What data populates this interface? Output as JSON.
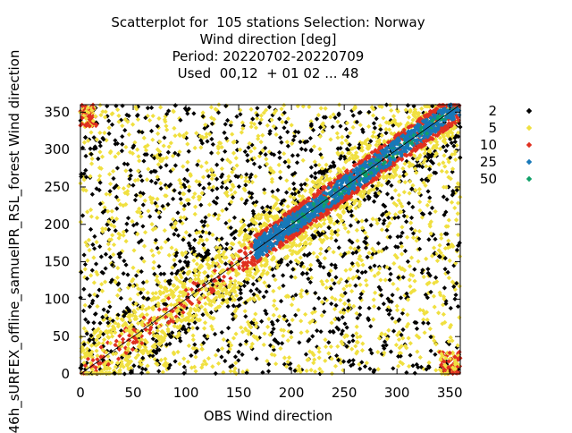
{
  "chart_data": {
    "type": "scatter",
    "title_lines": [
      "Scatterplot for  105 stations Selection: Norway",
      "Wind direction [deg]",
      "Period: 20220702-20220709",
      "Used  00,12  + 01 02 ... 48"
    ],
    "xlabel": "OBS Wind direction",
    "ylabel": "46h_sURFEX_offline_samuelPR_RSL_forest Wind direction",
    "xlim": [
      0,
      360
    ],
    "ylim": [
      0,
      360
    ],
    "x_ticks": [
      0,
      50,
      100,
      150,
      200,
      250,
      300,
      350
    ],
    "y_ticks": [
      0,
      50,
      100,
      150,
      200,
      250,
      300,
      350
    ],
    "grid": false,
    "legend_position": "right",
    "legend": [
      {
        "label": "2",
        "color": "#000000"
      },
      {
        "label": "5",
        "color": "#f0e040"
      },
      {
        "label": "10",
        "color": "#e03020"
      },
      {
        "label": "25",
        "color": "#1878b8"
      },
      {
        "label": "50",
        "color": "#10a068"
      }
    ],
    "reference_line": {
      "from": [
        0,
        0
      ],
      "to": [
        360,
        360
      ]
    },
    "point_density_classes": {
      "description_note": "",
      "min_count_per_class": [
        2,
        5,
        10,
        25,
        50
      ]
    }
  }
}
